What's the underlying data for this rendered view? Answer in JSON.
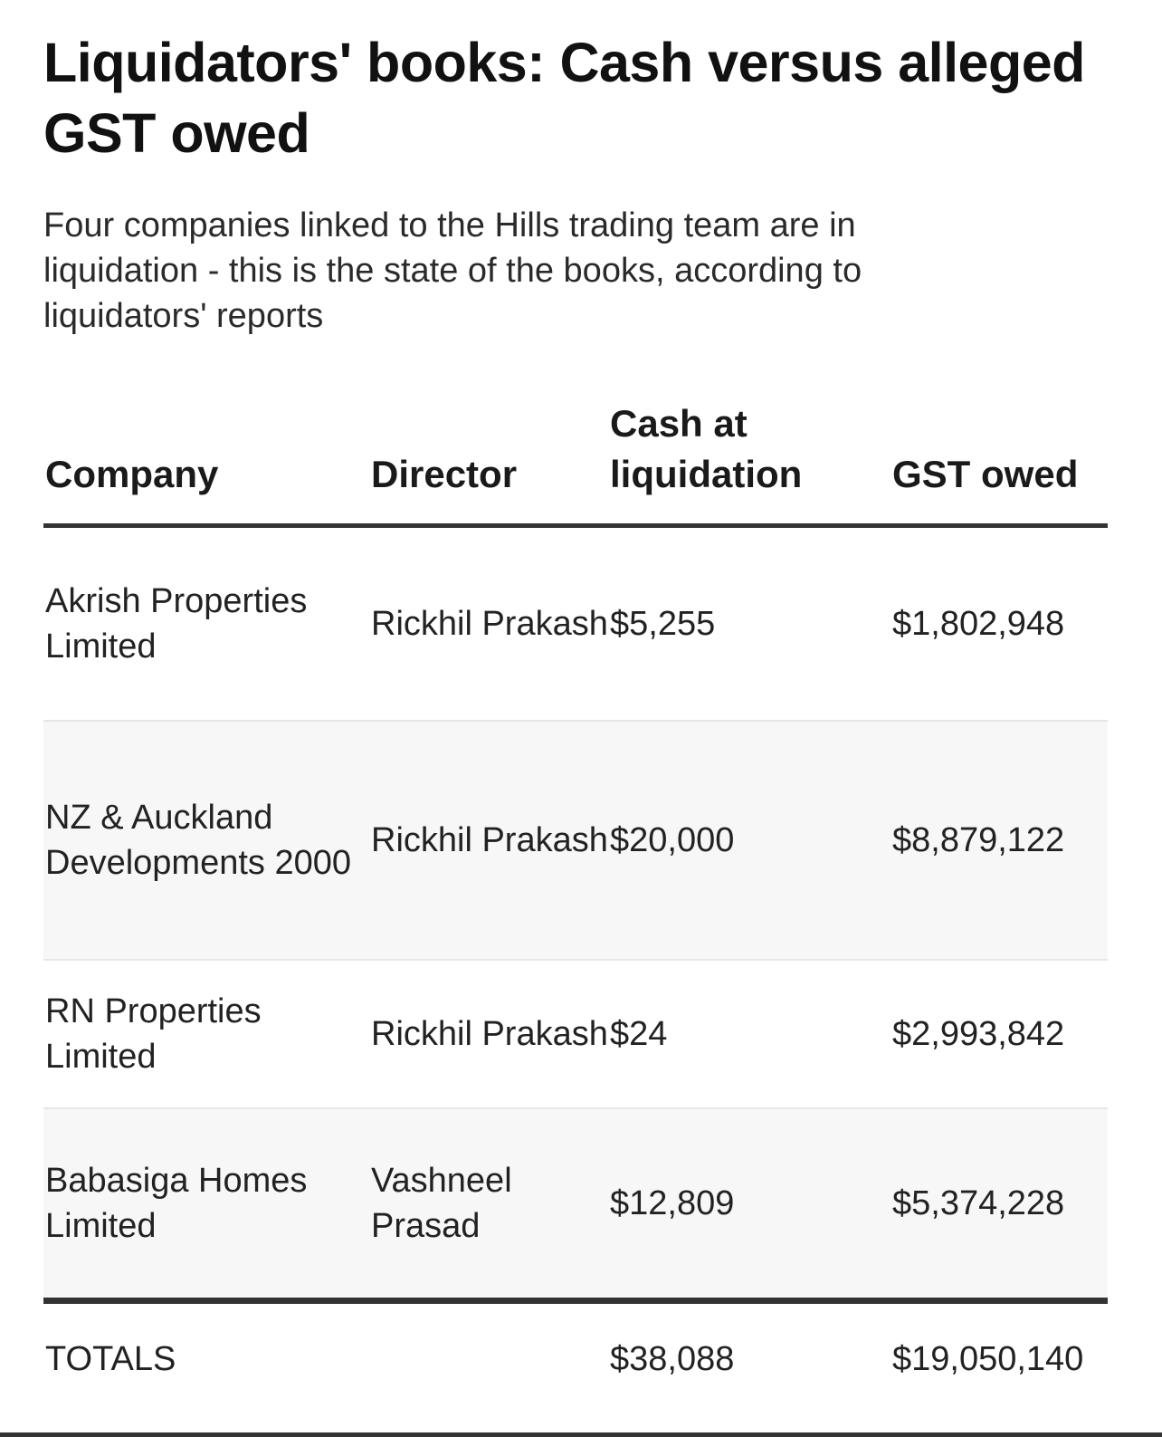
{
  "header": {
    "title": "Liquidators' books: Cash versus alleged GST owed",
    "subtitle": "Four companies linked to the Hills trading team are in liquidation - this is the state of the books, according to liquidators' reports"
  },
  "chart_data": {
    "type": "table",
    "columns": [
      "Company",
      "Director",
      "Cash at liquidation",
      "GST owed"
    ],
    "rows": [
      [
        "Akrish Properties Limited",
        "Rickhil Prakash",
        "$5,255",
        "$1,802,948"
      ],
      [
        "NZ & Auckland Developments 2000",
        "Rickhil Prakash",
        "$20,000",
        "$8,879,122"
      ],
      [
        "RN Properties Limited",
        "Rickhil Prakash",
        "$24",
        "$2,993,842"
      ],
      [
        "Babasiga Homes Limited",
        "Vashneel Prasad",
        "$12,809",
        "$5,374,228"
      ]
    ],
    "totals": [
      "TOTALS",
      "",
      "$38,088",
      "$19,050,140"
    ]
  }
}
